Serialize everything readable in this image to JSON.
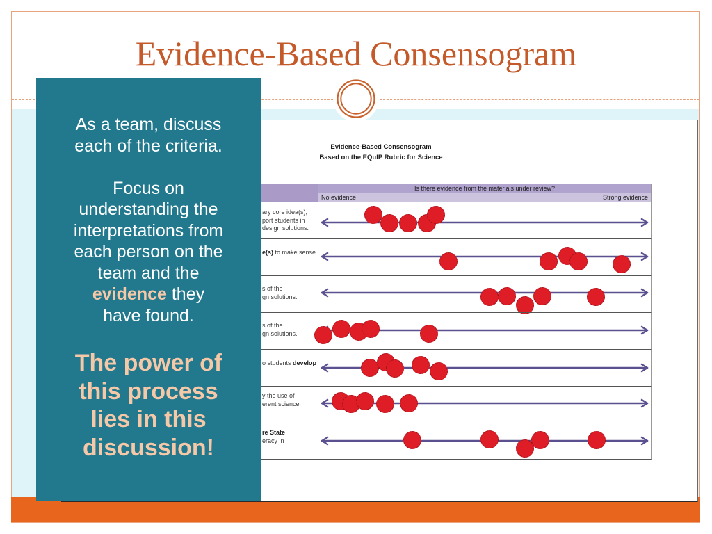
{
  "slide": {
    "title": "Evidence-Based Consensogram"
  },
  "theme": {
    "title_color": "#c4592a",
    "panel_color": "#22788d",
    "highlight_color": "#f5c8a8",
    "bottom_bar_color": "#e8651e",
    "band_color": "#def4f8",
    "dot_color": "#de1d27",
    "arrow_color": "#5b5190"
  },
  "panel": {
    "paragraph1_lines": [
      "As a team, discuss",
      "each of the criteria."
    ],
    "paragraph2_lines": [
      "Focus on",
      "understanding the",
      "interpretations from",
      "each person on the",
      "team and the"
    ],
    "highlight_word": "evidence",
    "highlight_tail": " they",
    "last_line": "have found.",
    "callout_lines": [
      "The power of",
      "this process",
      "lies in this",
      "discussion!"
    ]
  },
  "screenshot": {
    "title": "Evidence-Based Consensogram",
    "subtitle": "Based on the EQuIP Rubric for Science",
    "question_header": "Is there evidence from the materials under review?",
    "scale_left": "No evidence",
    "scale_right": "Strong evidence"
  },
  "chart_data": {
    "type": "scatter",
    "title": "Evidence-Based Consensogram",
    "subtitle": "Based on the EQuIP Rubric for Science",
    "xlabel": "Is there evidence from the materials under review?",
    "x_range_labels": [
      "No evidence",
      "Strong evidence"
    ],
    "xlim": [
      0,
      1
    ],
    "grid": false,
    "rows": [
      {
        "label_fragments": [
          [
            {
              "text": "ary core idea(s),"
            }
          ],
          [
            {
              "text": "port students in"
            }
          ],
          [
            {
              "text": "design solutions."
            }
          ]
        ],
        "dots": [
          {
            "x": 0.16,
            "dy": -11
          },
          {
            "x": 0.209,
            "dy": 1
          },
          {
            "x": 0.266,
            "dy": 1
          },
          {
            "x": 0.323,
            "dy": 1
          },
          {
            "x": 0.351,
            "dy": -11
          }
        ]
      },
      {
        "label_fragments": [
          [
            {
              "text": "e(s)",
              "bold": true
            },
            {
              "text": " to make sense"
            }
          ]
        ],
        "dots": [
          {
            "x": 0.389,
            "dy": 7
          },
          {
            "x": 0.696,
            "dy": 7
          },
          {
            "x": 0.753,
            "dy": -1
          },
          {
            "x": 0.787,
            "dy": 7
          },
          {
            "x": 0.919,
            "dy": 11
          }
        ]
      },
      {
        "label_fragments": [
          [
            {
              "text": "s of the"
            }
          ],
          [
            {
              "text": "gn solutions."
            }
          ]
        ],
        "dots": [
          {
            "x": 0.515,
            "dy": 6
          },
          {
            "x": 0.568,
            "dy": 5
          },
          {
            "x": 0.623,
            "dy": 18
          },
          {
            "x": 0.677,
            "dy": 5
          },
          {
            "x": 0.84,
            "dy": 6
          }
        ]
      },
      {
        "label_fragments": [
          [
            {
              "text": "s of the"
            }
          ],
          [
            {
              "text": "gn solutions."
            }
          ]
        ],
        "dots": [
          {
            "x": 0.006,
            "dy": 7
          },
          {
            "x": 0.062,
            "dy": -2
          },
          {
            "x": 0.115,
            "dy": 2
          },
          {
            "x": 0.151,
            "dy": -2
          },
          {
            "x": 0.33,
            "dy": 5
          }
        ]
      },
      {
        "label_fragments": [
          [
            {
              "text": "o students "
            },
            {
              "text": "develop",
              "bold": true
            }
          ]
        ],
        "dots": [
          {
            "x": 0.149,
            "dy": 0
          },
          {
            "x": 0.198,
            "dy": -8
          },
          {
            "x": 0.226,
            "dy": 1
          },
          {
            "x": 0.304,
            "dy": -4
          },
          {
            "x": 0.36,
            "dy": 5
          }
        ]
      },
      {
        "label_fragments": [
          [
            {
              "text": "y the use of"
            }
          ],
          [
            {
              "text": "erent science"
            }
          ]
        ],
        "dots": [
          {
            "x": 0.06,
            "dy": -3
          },
          {
            "x": 0.091,
            "dy": 1
          },
          {
            "x": 0.134,
            "dy": -3
          },
          {
            "x": 0.196,
            "dy": 1
          },
          {
            "x": 0.268,
            "dy": 0
          }
        ]
      },
      {
        "label_fragments": [
          [
            {
              "text": "re State",
              "bold": true
            }
          ],
          [
            {
              "text": "eracy in"
            }
          ]
        ],
        "dots": [
          {
            "x": 0.279,
            "dy": -1
          },
          {
            "x": 0.515,
            "dy": -2
          },
          {
            "x": 0.623,
            "dy": 11
          },
          {
            "x": 0.67,
            "dy": -1
          },
          {
            "x": 0.843,
            "dy": -1
          }
        ]
      }
    ]
  }
}
